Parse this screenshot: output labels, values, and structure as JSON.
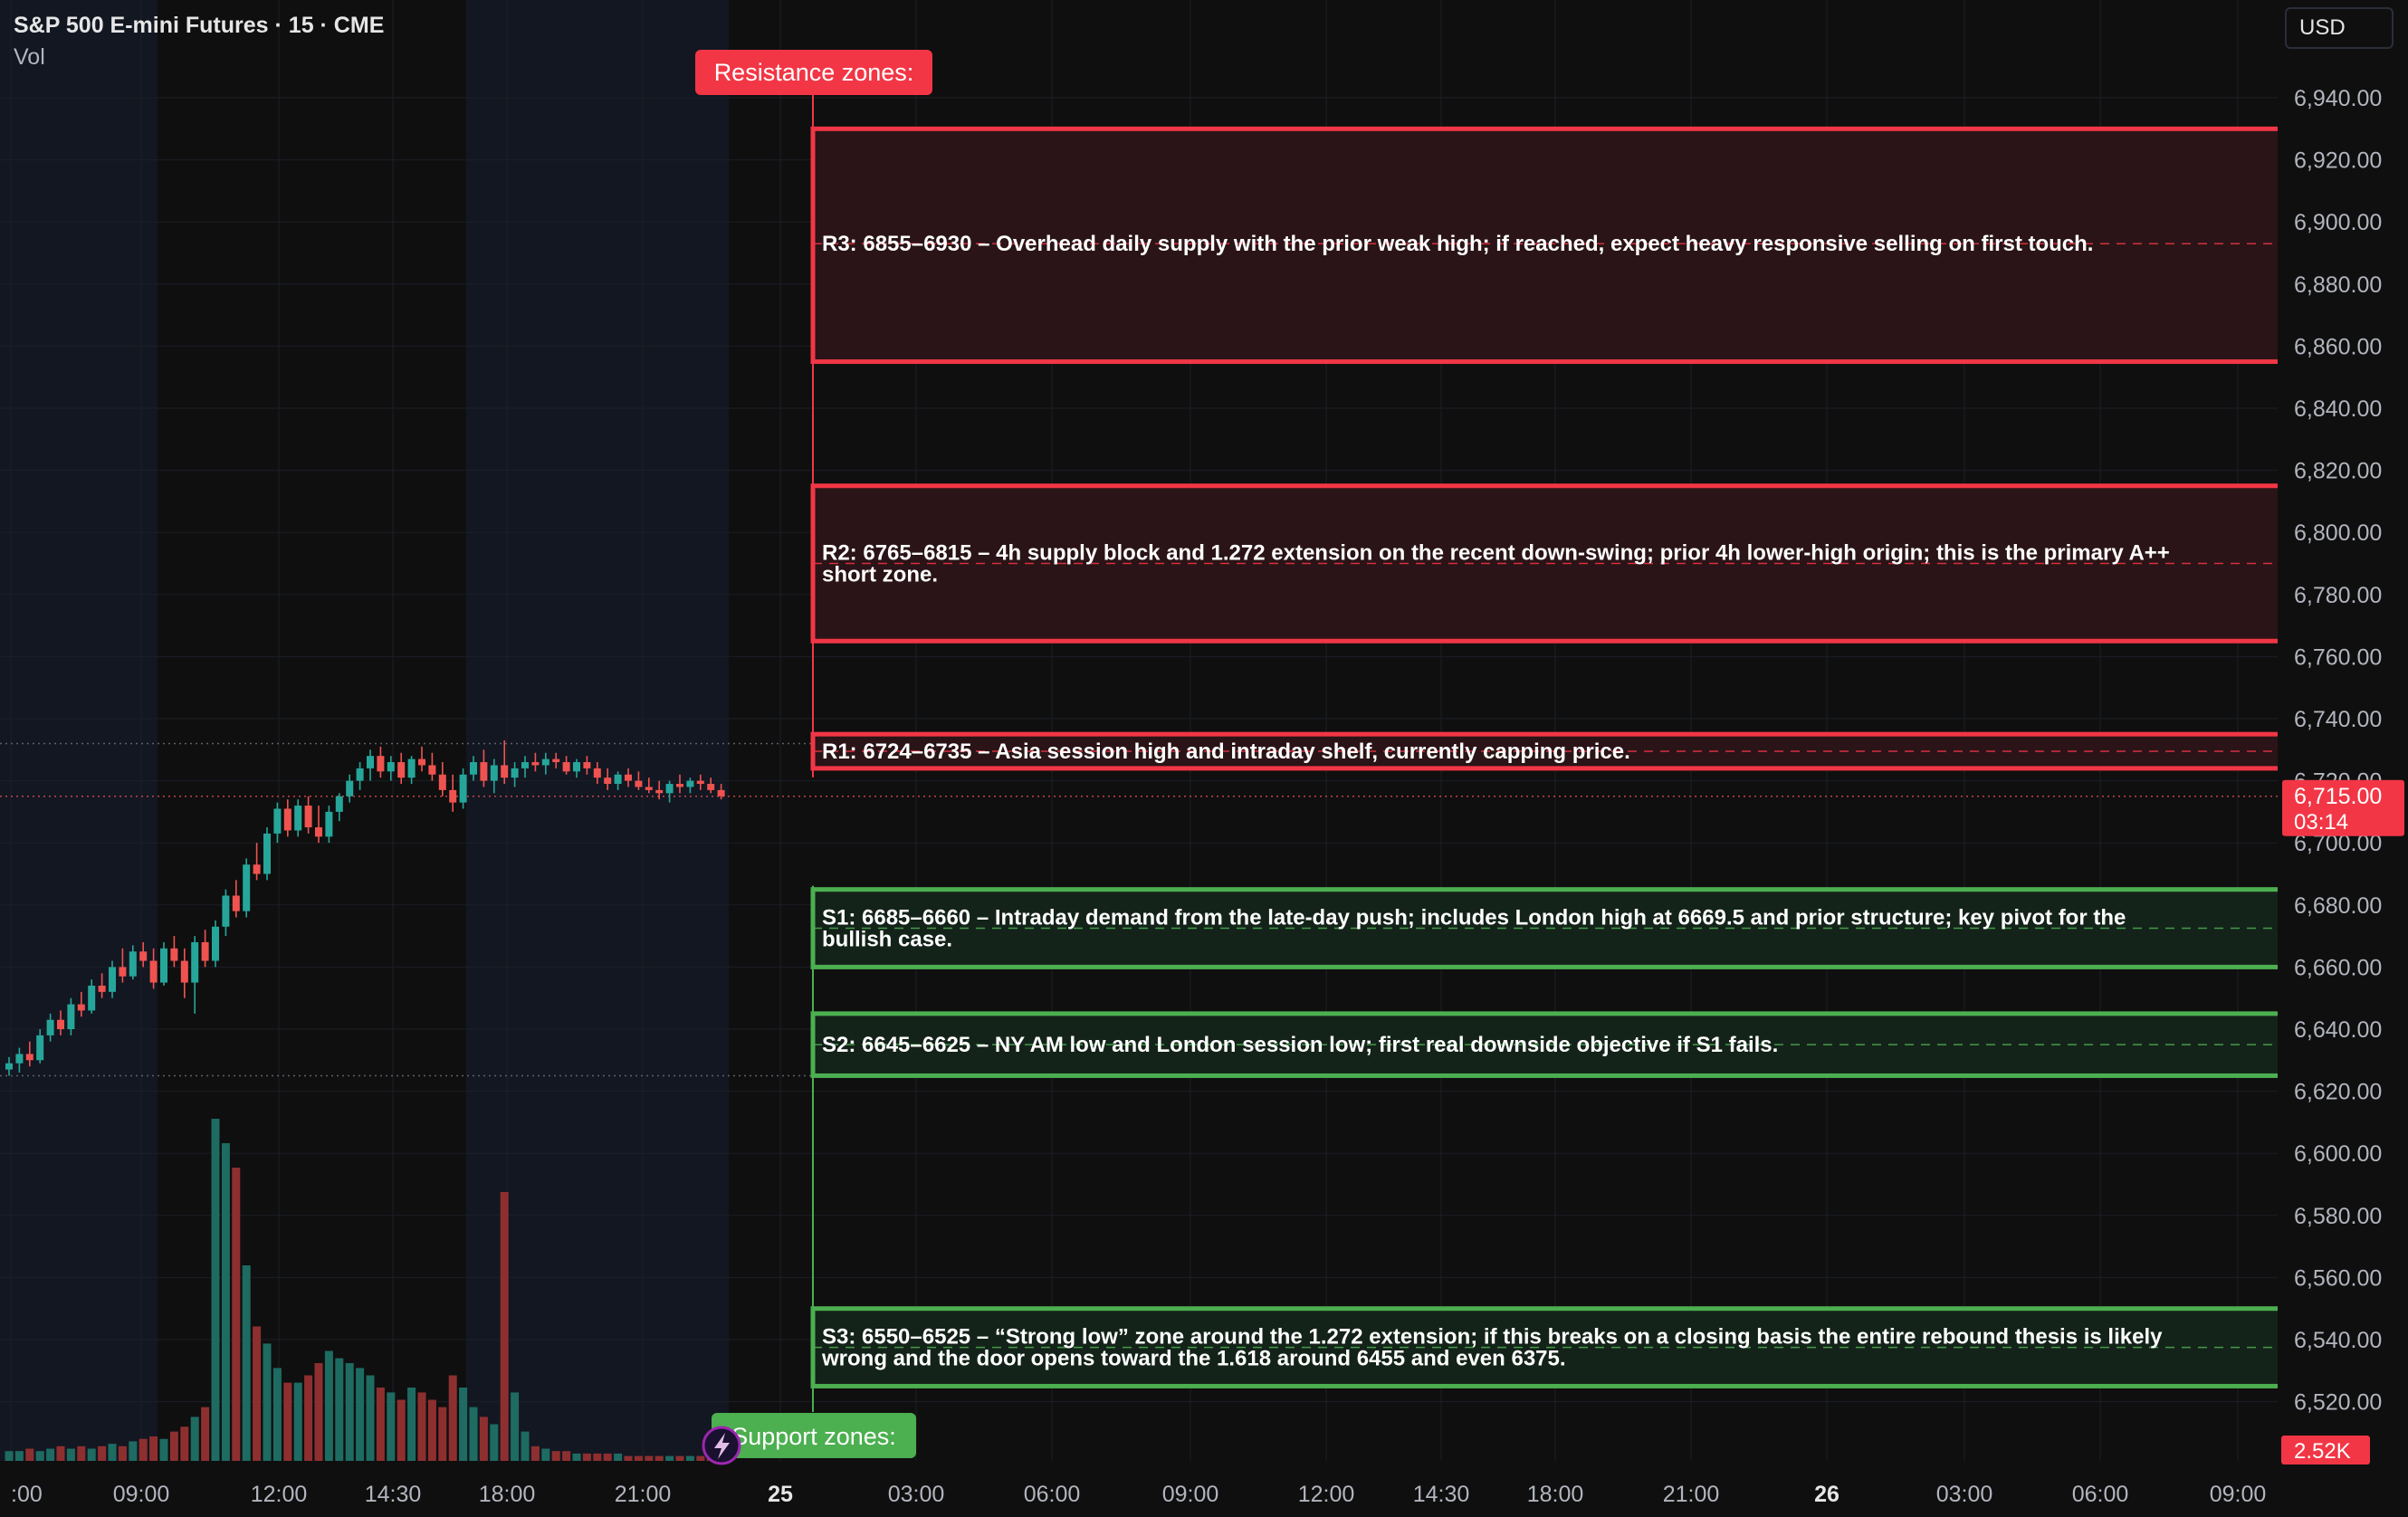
{
  "header": {
    "symbol": "S&P 500 E-mini Futures · 15 · CME",
    "volume_label": "Vol",
    "currency": "USD"
  },
  "colors": {
    "background": "#0f0f0f",
    "session_shade": "#131722",
    "grid": "#1c1f27",
    "up": "#26a69a",
    "down": "#ef5350",
    "resistance": "#f23645",
    "resistance_fill": "#2a1417",
    "support": "#4caf50",
    "support_fill": "#14231a",
    "axis_text": "#b2b5be"
  },
  "chart_data": {
    "type": "candlestick",
    "title": "S&P 500 E-mini Futures · 15 · CME",
    "y_axis": {
      "ticks": [
        6940,
        6920,
        6900,
        6880,
        6860,
        6840,
        6820,
        6800,
        6780,
        6760,
        6740,
        6720,
        6700,
        6680,
        6660,
        6640,
        6620,
        6600,
        6580,
        6560,
        6540,
        6520
      ],
      "tick_labels": [
        "6,940.00",
        "6,920.00",
        "6,900.00",
        "6,880.00",
        "6,860.00",
        "6,840.00",
        "6,820.00",
        "6,800.00",
        "6,780.00",
        "6,760.00",
        "6,740.00",
        "6,720.00",
        "6,700.00",
        "6,680.00",
        "6,660.00",
        "6,640.00",
        "6,620.00",
        "6,600.00",
        "6,580.00",
        "6,560.00",
        "6,540.00",
        "6,520.00"
      ],
      "range": [
        6510,
        6948
      ]
    },
    "x_axis": {
      "tick_labels": [
        ":00",
        "09:00",
        "12:00",
        "14:30",
        "18:00",
        "21:00",
        "25",
        "03:00",
        "06:00",
        "09:00",
        "12:00",
        "14:30",
        "18:00",
        "21:00",
        "26",
        "03:00",
        "06:00",
        "09:00"
      ],
      "bold_labels": [
        "25",
        "26"
      ]
    },
    "current_price": {
      "label": "6,715.00",
      "countdown": "03:14",
      "value": 6715
    },
    "volume_last": "2.52K",
    "candles": [
      [
        6627,
        6631,
        6625,
        6629
      ],
      [
        6629,
        6634,
        6626,
        6632
      ],
      [
        6632,
        6636,
        6628,
        6630
      ],
      [
        6630,
        6640,
        6629,
        6638
      ],
      [
        6638,
        6645,
        6636,
        6643
      ],
      [
        6643,
        6646,
        6638,
        6640
      ],
      [
        6640,
        6650,
        6638,
        6648
      ],
      [
        6648,
        6652,
        6644,
        6646
      ],
      [
        6646,
        6656,
        6645,
        6654
      ],
      [
        6654,
        6658,
        6650,
        6652
      ],
      [
        6652,
        6662,
        6650,
        6660
      ],
      [
        6660,
        6666,
        6655,
        6657
      ],
      [
        6657,
        6667,
        6656,
        6665
      ],
      [
        6665,
        6668,
        6660,
        6662
      ],
      [
        6662,
        6666,
        6653,
        6655
      ],
      [
        6655,
        6668,
        6654,
        6666
      ],
      [
        6666,
        6670,
        6660,
        6662
      ],
      [
        6662,
        6666,
        6650,
        6655
      ],
      [
        6655,
        6670,
        6645,
        6668
      ],
      [
        6668,
        6672,
        6660,
        6662
      ],
      [
        6662,
        6675,
        6660,
        6673
      ],
      [
        6673,
        6685,
        6670,
        6683
      ],
      [
        6683,
        6688,
        6676,
        6678
      ],
      [
        6678,
        6695,
        6676,
        6693
      ],
      [
        6693,
        6700,
        6688,
        6690
      ],
      [
        6690,
        6705,
        6688,
        6703
      ],
      [
        6703,
        6713,
        6700,
        6711
      ],
      [
        6711,
        6714,
        6702,
        6704
      ],
      [
        6704,
        6714,
        6702,
        6712
      ],
      [
        6712,
        6715,
        6703,
        6705
      ],
      [
        6705,
        6712,
        6700,
        6702
      ],
      [
        6702,
        6712,
        6700,
        6710
      ],
      [
        6710,
        6716,
        6707,
        6715
      ],
      [
        6715,
        6722,
        6713,
        6720
      ],
      [
        6720,
        6726,
        6717,
        6724
      ],
      [
        6724,
        6730,
        6720,
        6728
      ],
      [
        6728,
        6731,
        6721,
        6723
      ],
      [
        6723,
        6728,
        6720,
        6726
      ],
      [
        6726,
        6729,
        6719,
        6721
      ],
      [
        6721,
        6728,
        6719,
        6727
      ],
      [
        6727,
        6731,
        6723,
        6725
      ],
      [
        6725,
        6729,
        6720,
        6722
      ],
      [
        6722,
        6726,
        6715,
        6717
      ],
      [
        6717,
        6722,
        6710,
        6713
      ],
      [
        6713,
        6724,
        6711,
        6722
      ],
      [
        6722,
        6728,
        6720,
        6726
      ],
      [
        6726,
        6730,
        6718,
        6720
      ],
      [
        6720,
        6727,
        6716,
        6725
      ],
      [
        6725,
        6733,
        6719,
        6721
      ],
      [
        6721,
        6726,
        6718,
        6724
      ],
      [
        6724,
        6728,
        6721,
        6726
      ],
      [
        6726,
        6729,
        6723,
        6725
      ],
      [
        6725,
        6729,
        6722,
        6727
      ],
      [
        6727,
        6729,
        6724,
        6726
      ],
      [
        6726,
        6728,
        6722,
        6723
      ],
      [
        6723,
        6727,
        6721,
        6726
      ],
      [
        6726,
        6728,
        6722,
        6724
      ],
      [
        6724,
        6726,
        6719,
        6721
      ],
      [
        6721,
        6724,
        6717,
        6719
      ],
      [
        6719,
        6723,
        6717,
        6722
      ],
      [
        6722,
        6724,
        6718,
        6720
      ],
      [
        6720,
        6723,
        6717,
        6718
      ],
      [
        6718,
        6721,
        6716,
        6717
      ],
      [
        6717,
        6720,
        6714,
        6716
      ],
      [
        6716,
        6720,
        6713,
        6719
      ],
      [
        6719,
        6722,
        6716,
        6718
      ],
      [
        6718,
        6721,
        6716,
        6720
      ],
      [
        6720,
        6722,
        6717,
        6719
      ],
      [
        6719,
        6721,
        6716,
        6717
      ],
      [
        6717,
        6719,
        6714,
        6715
      ]
    ],
    "volumes": [
      4,
      4,
      5,
      4,
      5,
      6,
      5,
      6,
      5,
      6,
      7,
      6,
      8,
      9,
      10,
      9,
      12,
      14,
      18,
      22,
      140,
      130,
      120,
      80,
      55,
      48,
      38,
      32,
      32,
      35,
      40,
      45,
      42,
      40,
      38,
      35,
      30,
      28,
      25,
      30,
      28,
      25,
      22,
      35,
      30,
      22,
      18,
      15,
      110,
      28,
      12,
      6,
      5,
      4,
      4,
      3,
      3,
      3,
      3,
      3,
      2,
      2,
      2,
      2,
      2,
      2,
      2,
      2,
      2,
      2
    ],
    "annotations": {
      "resistance_title": "Resistance zones:",
      "support_title": "Support zones:",
      "zones": [
        {
          "id": "R3",
          "kind": "resistance",
          "low": 6855,
          "high": 6930,
          "mid": 6893,
          "text": [
            "R3: 6855–6930 – Overhead daily supply with the prior weak high; if reached, expect heavy responsive selling on first touch."
          ]
        },
        {
          "id": "R2",
          "kind": "resistance",
          "low": 6765,
          "high": 6815,
          "mid": 6790,
          "text": [
            "R2: 6765–6815 – 4h supply block and 1.272 extension on the recent down-swing; prior 4h lower-high origin; this is the primary A++",
            "short zone."
          ]
        },
        {
          "id": "R1",
          "kind": "resistance",
          "low": 6724,
          "high": 6735,
          "mid": 6729.5,
          "text": [
            "R1: 6724–6735 – Asia session high and intraday shelf, currently capping price."
          ]
        },
        {
          "id": "S1",
          "kind": "support",
          "low": 6660,
          "high": 6685,
          "mid": 6672.5,
          "text": [
            "S1: 6685–6660 – Intraday demand from the late-day push; includes London high at 6669.5 and prior structure; key pivot for the",
            "bullish case."
          ]
        },
        {
          "id": "S2",
          "kind": "support",
          "low": 6625,
          "high": 6645,
          "mid": 6635,
          "text": [
            "S2: 6645–6625 – NY AM low and London session low; first real downside objective if S1 fails."
          ]
        },
        {
          "id": "S3",
          "kind": "support",
          "low": 6525,
          "high": 6550,
          "mid": 6537.5,
          "text": [
            "S3: 6550–6525 – “Strong low” zone around the 1.272 extension; if this breaks on a closing basis the entire rebound thesis is likely",
            "wrong and the door opens toward the 1.618 around 6455 and even 6375."
          ]
        }
      ]
    }
  }
}
